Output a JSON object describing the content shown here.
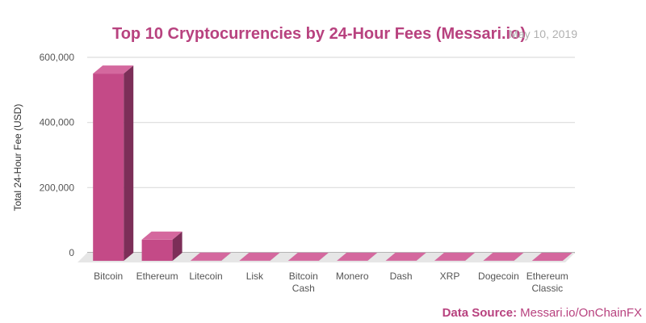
{
  "chart_data": {
    "type": "bar",
    "title": "Top 10 Cryptocurrencies by 24-Hour Fees (Messari.io)",
    "subtitle": "May 10, 2019",
    "xlabel": "",
    "ylabel": "Total 24-Hour Fee (USD)",
    "ylim": [
      0,
      600000
    ],
    "yticks": [
      0,
      200000,
      400000,
      600000
    ],
    "ytick_labels": [
      "0",
      "200,000",
      "400,000",
      "600,000"
    ],
    "grid": true,
    "categories": [
      [
        "Bitcoin"
      ],
      [
        "Ethereum"
      ],
      [
        "Litecoin"
      ],
      [
        "Lisk"
      ],
      [
        "Bitcoin",
        "Cash"
      ],
      [
        "Monero"
      ],
      [
        "Dash"
      ],
      [
        "XRP"
      ],
      [
        "Dogecoin"
      ],
      [
        "Ethereum",
        "Classic"
      ]
    ],
    "values": [
      575000,
      65000,
      500,
      300,
      300,
      300,
      200,
      200,
      200,
      100
    ],
    "colors": {
      "front": "#c44a87",
      "side": "#7c2e58",
      "top": "#d4689e",
      "floor": "#e6e6e6"
    }
  },
  "source": {
    "label": "Data Source:",
    "value": "Messari.io/OnChainFX"
  }
}
